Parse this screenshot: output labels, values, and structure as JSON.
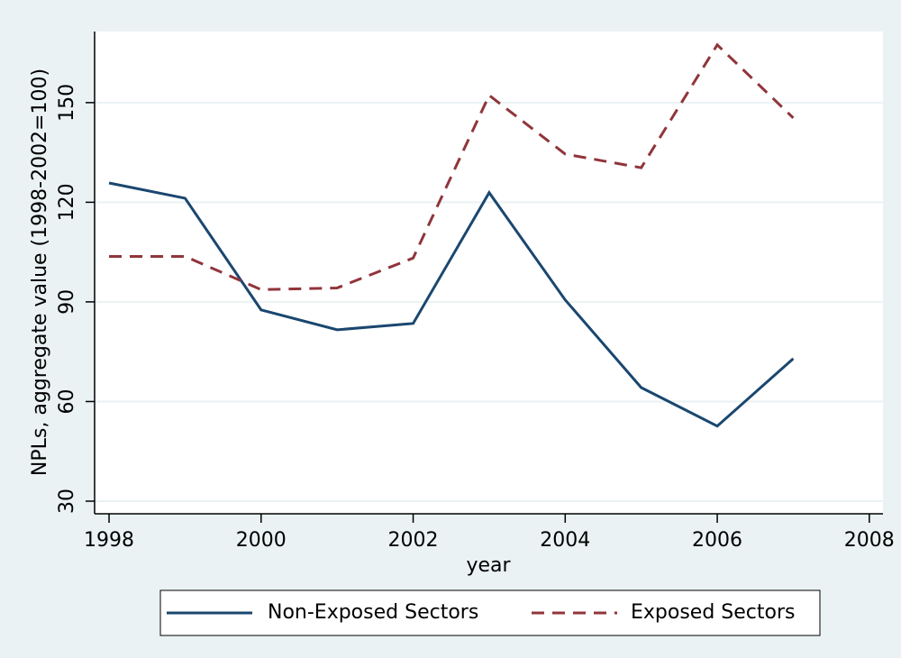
{
  "chart_data": {
    "type": "line",
    "x_label": "year",
    "y_label": "NPLs, aggregate value (1998-2002=100)",
    "x": [
      1998,
      1999,
      2000,
      2001,
      2002,
      2003,
      2004,
      2005,
      2006,
      2007
    ],
    "series": [
      {
        "name": "Non-Exposed Sectors",
        "color": "#1a476f",
        "line_style": "solid",
        "values": [
          125.8,
          121.2,
          87.6,
          81.6,
          83.5,
          122.9,
          90.6,
          64.2,
          52.6,
          72.9
        ]
      },
      {
        "name": "Exposed Sectors",
        "color": "#90353b",
        "line_style": "dashed",
        "values": [
          103.7,
          103.7,
          93.7,
          94.2,
          103.2,
          152.2,
          134.5,
          130.4,
          167.4,
          145.4
        ]
      }
    ],
    "xlim": [
      1997.81,
      2008.18
    ],
    "xticks": [
      1998,
      2000,
      2002,
      2004,
      2006,
      2008
    ],
    "ylim": [
      26.2,
      171.4
    ],
    "yticks": [
      30,
      60,
      90,
      120,
      150
    ],
    "grid": true,
    "legend_position": "bottom"
  }
}
